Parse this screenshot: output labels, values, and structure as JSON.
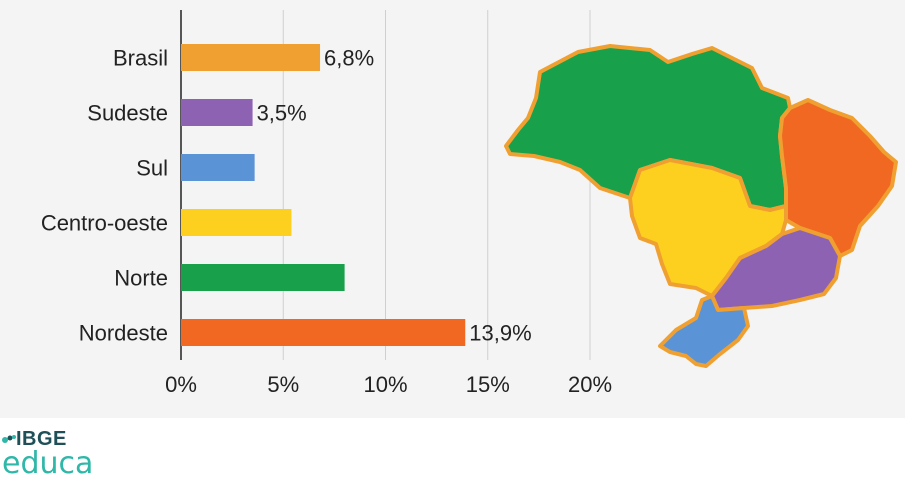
{
  "chart_data": {
    "type": "bar",
    "orientation": "horizontal",
    "categories": [
      "Brasil",
      "Sudeste",
      "Sul",
      "Centro-oeste",
      "Norte",
      "Nordeste"
    ],
    "values": [
      6.8,
      3.5,
      3.6,
      5.4,
      8.0,
      13.9
    ],
    "data_labels": [
      "6,8%",
      "3,5%",
      "",
      "",
      "",
      "13,9%"
    ],
    "colors": [
      "#f0a030",
      "#8e62b3",
      "#5a93d6",
      "#fdd020",
      "#18a04a",
      "#f06822"
    ],
    "xlim": [
      0,
      20
    ],
    "xticks": [
      0,
      5,
      10,
      15,
      20
    ],
    "xtick_labels": [
      "0%",
      "5%",
      "10%",
      "15%",
      "20%"
    ],
    "grid": "vertical",
    "title": "",
    "xlabel": "",
    "ylabel": ""
  },
  "map": {
    "regions": [
      {
        "name": "Norte",
        "color": "#18a04a"
      },
      {
        "name": "Nordeste",
        "color": "#f06822"
      },
      {
        "name": "Centro-oeste",
        "color": "#fdd020"
      },
      {
        "name": "Sudeste",
        "color": "#8e62b3"
      },
      {
        "name": "Sul",
        "color": "#5a93d6"
      }
    ],
    "border_color": "#f0a030"
  },
  "logo": {
    "top": "IBGE",
    "bottom": "educa",
    "colors": {
      "dark": "#1f4f57",
      "accent": "#2fb7a8"
    }
  }
}
